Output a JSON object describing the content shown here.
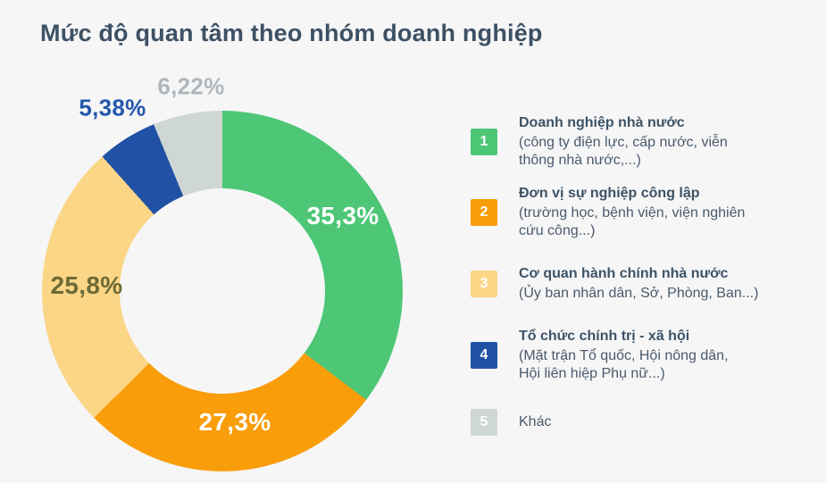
{
  "title": "Mức độ quan tâm theo nhóm doanh nghiệp",
  "chart_data": {
    "type": "pie",
    "subtype": "donut",
    "title": "Mức độ quan tâm theo nhóm doanh nghiệp",
    "unit": "%",
    "start_angle_deg": 0,
    "direction": "clockwise",
    "legend_position": "right",
    "background_color": "#f6f6f7",
    "series": [
      {
        "name": "Doanh nghiệp nhà nước",
        "value": 35.3,
        "label": "35,3%",
        "color": "#4dc776",
        "label_color": "#ffffff"
      },
      {
        "name": "Đơn vị sự nghiệp công lập",
        "value": 27.3,
        "label": "27,3%",
        "color": "#f99d0a",
        "label_color": "#ffffff"
      },
      {
        "name": "Cơ quan hành chính nhà nước",
        "value": 25.8,
        "label": "25,8%",
        "color": "#fbd687",
        "label_color": "#6e6a33"
      },
      {
        "name": "Tổ chức chính trị - xã hội",
        "value": 5.38,
        "label": "5,38%",
        "color": "#2151a5",
        "label_color": "#2357ab"
      },
      {
        "name": "Khác",
        "value": 6.22,
        "label": "6,22%",
        "color": "#cfd7d5",
        "label_color": "#aeb7bb"
      }
    ]
  },
  "legend": {
    "items": [
      {
        "number": "1",
        "title": "Doanh nghiệp nhà nước",
        "desc": "(công ty điện lực, cấp nước, viễn\nthông nhà nước,...)"
      },
      {
        "number": "2",
        "title": "Đơn vị sự nghiệp công lập",
        "desc": "(trường học, bệnh viện, viện nghiên\ncứu công...)"
      },
      {
        "number": "3",
        "title": "Cơ quan hành chính nhà nước",
        "desc": "(Ủy ban nhân dân, Sở, Phòng, Ban...)"
      },
      {
        "number": "4",
        "title": "Tổ chức chính trị - xã hội",
        "desc": "(Mặt trận Tổ quốc, Hội nông dân,\nHội liên hiệp Phụ nữ...)"
      },
      {
        "number": "5",
        "title": "Khác",
        "desc": ""
      }
    ]
  }
}
